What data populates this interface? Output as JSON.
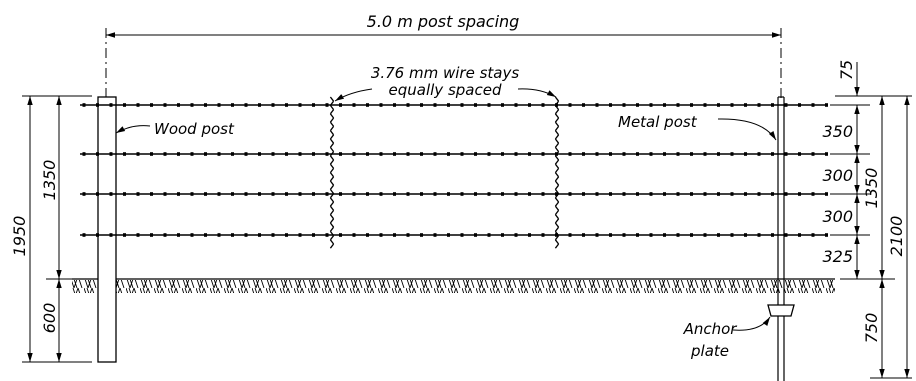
{
  "labels": {
    "post_spacing": "5.0 m post spacing",
    "wire_stays_line1": "3.76 mm wire stays",
    "wire_stays_line2": "equally spaced",
    "wood_post": "Wood post",
    "metal_post": "Metal post",
    "anchor_line1": "Anchor",
    "anchor_line2": "plate"
  },
  "dimensions_left": {
    "overall": "1950",
    "above_ground": "1350",
    "below_ground": "600"
  },
  "dimensions_right": {
    "top_offset": "75",
    "gap_1": "350",
    "gap_2": "300",
    "gap_3": "300",
    "gap_4": "325",
    "above_ground": "1350",
    "overall": "2100",
    "below_ground": "750"
  },
  "wire_count": 4,
  "colors": {
    "ink": "#000000",
    "background": "#ffffff"
  }
}
